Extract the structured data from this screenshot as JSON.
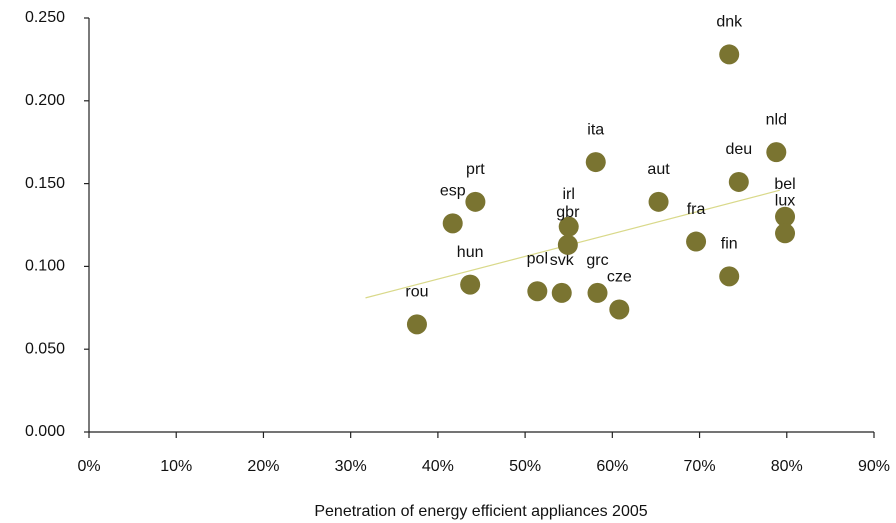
{
  "chart_data": {
    "type": "scatter",
    "xlabel": "Penetration of energy efficient appliances 2005",
    "labels": [
      "rou",
      "esp",
      "prt",
      "hun",
      "pol",
      "svk",
      "irl",
      "gbr",
      "grc",
      "ita",
      "cze",
      "aut",
      "fra",
      "fin",
      "dnk",
      "deu",
      "nld",
      "bel",
      "lux"
    ],
    "x": [
      37.6,
      41.7,
      44.3,
      43.7,
      51.4,
      54.2,
      55.0,
      54.9,
      58.3,
      58.1,
      60.8,
      65.3,
      69.6,
      73.4,
      73.4,
      74.5,
      78.8,
      79.8,
      79.8
    ],
    "y": [
      0.065,
      0.126,
      0.139,
      0.089,
      0.085,
      0.084,
      0.124,
      0.113,
      0.084,
      0.163,
      0.074,
      0.139,
      0.115,
      0.094,
      0.228,
      0.151,
      0.169,
      0.13,
      0.12
    ],
    "color": "#7a7431",
    "trendline": {
      "x": [
        31.7,
        79.2
      ],
      "y": [
        0.081,
        0.146
      ],
      "color": "#d9d98a"
    },
    "xlim": [
      0,
      90
    ],
    "xticks": [
      {
        "value": 0,
        "label": "0%"
      },
      {
        "value": 10,
        "label": "10%"
      },
      {
        "value": 20,
        "label": "20%"
      },
      {
        "value": 30,
        "label": "30%"
      },
      {
        "value": 40,
        "label": "40%"
      },
      {
        "value": 50,
        "label": "50%"
      },
      {
        "value": 60,
        "label": "60%"
      },
      {
        "value": 70,
        "label": "70%"
      },
      {
        "value": 80,
        "label": "80%"
      },
      {
        "value": 90,
        "label": "90%"
      }
    ],
    "ylim": [
      0,
      0.25
    ],
    "yticks": [
      {
        "value": 0,
        "label": "0.000"
      },
      {
        "value": 0.05,
        "label": "0.050"
      },
      {
        "value": 0.1,
        "label": "0.100"
      },
      {
        "value": 0.15,
        "label": "0.150"
      },
      {
        "value": 0.2,
        "label": "0.200"
      },
      {
        "value": 0.25,
        "label": "0.250"
      }
    ]
  }
}
